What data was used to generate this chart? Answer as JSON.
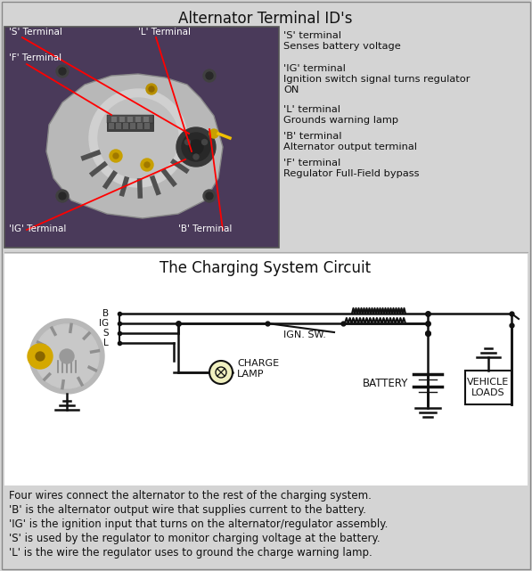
{
  "title_top": "Alternator Terminal ID's",
  "title_bottom": "The Charging System Circuit",
  "bg_color": "#d4d4d4",
  "text_color": "#000000",
  "bottom_text_lines": [
    "Four wires connect the alternator to the rest of the charging system.",
    "'B' is the alternator output wire that supplies current to the battery.",
    "'IG' is the ignition input that turns on the alternator/regulator assembly.",
    "'S' is used by the regulator to monitor charging voltage at the battery.",
    "'L' is the wire the regulator uses to ground the charge warning lamp."
  ],
  "right_desc": [
    [
      "'S' terminal",
      "Senses battery voltage"
    ],
    [
      "'IG' terminal",
      "Ignition switch signal turns regulator",
      "ON"
    ],
    [
      "'L' terminal",
      "Grounds warning lamp"
    ],
    [
      "'B' terminal",
      "Alternator output terminal"
    ],
    [
      "'F' terminal",
      "Regulator Full-Field bypass"
    ]
  ],
  "line_color": "#111111",
  "alt_color_pulley": "#d4a800",
  "photo_bg": "#4a3a5a",
  "photo_alt_color": "#c8c8c8",
  "circuit_bg": "#ffffff"
}
